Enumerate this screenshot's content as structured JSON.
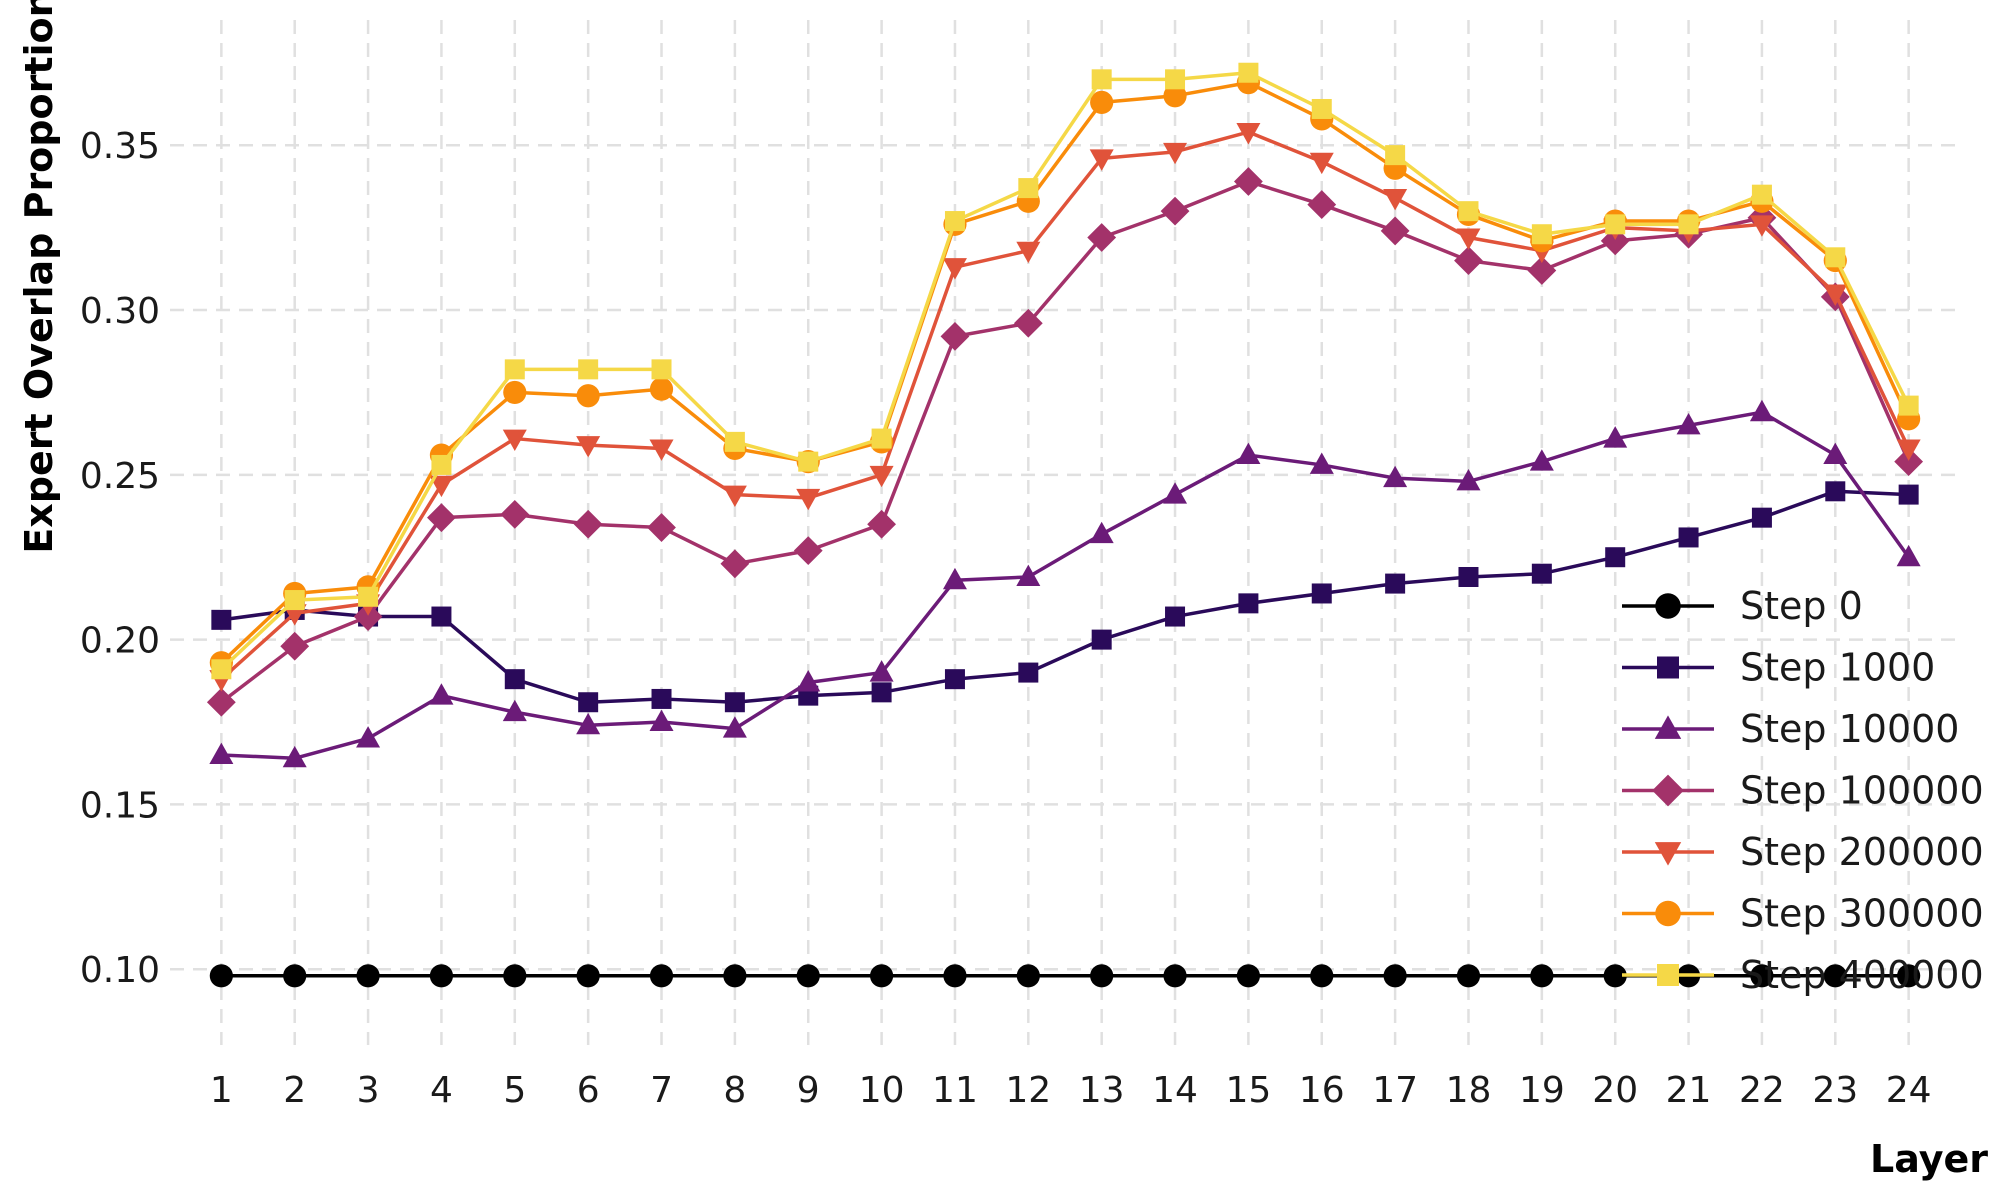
{
  "chart_data": {
    "type": "line",
    "title": "",
    "xlabel": "Layer",
    "ylabel": "Expert Overlap Proportion",
    "x": [
      1,
      2,
      3,
      4,
      5,
      6,
      7,
      8,
      9,
      10,
      11,
      12,
      13,
      14,
      15,
      16,
      17,
      18,
      19,
      20,
      21,
      22,
      23,
      24
    ],
    "xlim": [
      0.3,
      24.7
    ],
    "ylim": [
      0.077,
      0.388
    ],
    "yticks": [
      0.1,
      0.15,
      0.2,
      0.25,
      0.3,
      0.35
    ],
    "ytick_labels": [
      "0.10",
      "0.15",
      "0.20",
      "0.25",
      "0.30",
      "0.35"
    ],
    "grid": true,
    "legend_position": "bottom-right",
    "series": [
      {
        "name": "Step 0",
        "color": "#000000",
        "marker": "circle",
        "values": [
          0.098,
          0.098,
          0.098,
          0.098,
          0.098,
          0.098,
          0.098,
          0.098,
          0.098,
          0.098,
          0.098,
          0.098,
          0.098,
          0.098,
          0.098,
          0.098,
          0.098,
          0.098,
          0.098,
          0.098,
          0.098,
          0.098,
          0.098,
          0.098
        ]
      },
      {
        "name": "Step 1000",
        "color": "#2a0a5a",
        "marker": "square",
        "values": [
          0.206,
          0.209,
          0.207,
          0.207,
          0.188,
          0.181,
          0.182,
          0.181,
          0.183,
          0.184,
          0.188,
          0.19,
          0.2,
          0.207,
          0.211,
          0.214,
          0.217,
          0.219,
          0.22,
          0.225,
          0.231,
          0.237,
          0.245,
          0.244
        ]
      },
      {
        "name": "Step 10000",
        "color": "#6b1b78",
        "marker": "triangle-up",
        "values": [
          0.165,
          0.164,
          0.17,
          0.183,
          0.178,
          0.174,
          0.175,
          0.173,
          0.187,
          0.19,
          0.218,
          0.219,
          0.232,
          0.244,
          0.256,
          0.253,
          0.249,
          0.248,
          0.254,
          0.261,
          0.265,
          0.269,
          0.256,
          0.225
        ]
      },
      {
        "name": "Step 100000",
        "color": "#a3326a",
        "marker": "diamond",
        "values": [
          0.181,
          0.198,
          0.207,
          0.237,
          0.238,
          0.235,
          0.234,
          0.223,
          0.227,
          0.235,
          0.292,
          0.296,
          0.322,
          0.33,
          0.339,
          0.332,
          0.324,
          0.315,
          0.312,
          0.321,
          0.323,
          0.328,
          0.304,
          0.254
        ]
      },
      {
        "name": "Step 200000",
        "color": "#e0533a",
        "marker": "triangle-down",
        "values": [
          0.188,
          0.208,
          0.211,
          0.247,
          0.261,
          0.259,
          0.258,
          0.244,
          0.243,
          0.25,
          0.313,
          0.318,
          0.346,
          0.348,
          0.354,
          0.345,
          0.334,
          0.322,
          0.318,
          0.325,
          0.324,
          0.326,
          0.305,
          0.258
        ]
      },
      {
        "name": "Step 300000",
        "color": "#f98c0a",
        "marker": "circle",
        "values": [
          0.193,
          0.214,
          0.216,
          0.256,
          0.275,
          0.274,
          0.276,
          0.258,
          0.254,
          0.26,
          0.326,
          0.333,
          0.363,
          0.365,
          0.369,
          0.358,
          0.343,
          0.329,
          0.321,
          0.327,
          0.327,
          0.333,
          0.315,
          0.267
        ]
      },
      {
        "name": "Step 400000",
        "color": "#f5d847",
        "marker": "square",
        "values": [
          0.191,
          0.212,
          0.213,
          0.253,
          0.282,
          0.282,
          0.282,
          0.26,
          0.254,
          0.261,
          0.327,
          0.337,
          0.37,
          0.37,
          0.372,
          0.361,
          0.347,
          0.33,
          0.323,
          0.326,
          0.326,
          0.335,
          0.316,
          0.271
        ]
      }
    ]
  }
}
